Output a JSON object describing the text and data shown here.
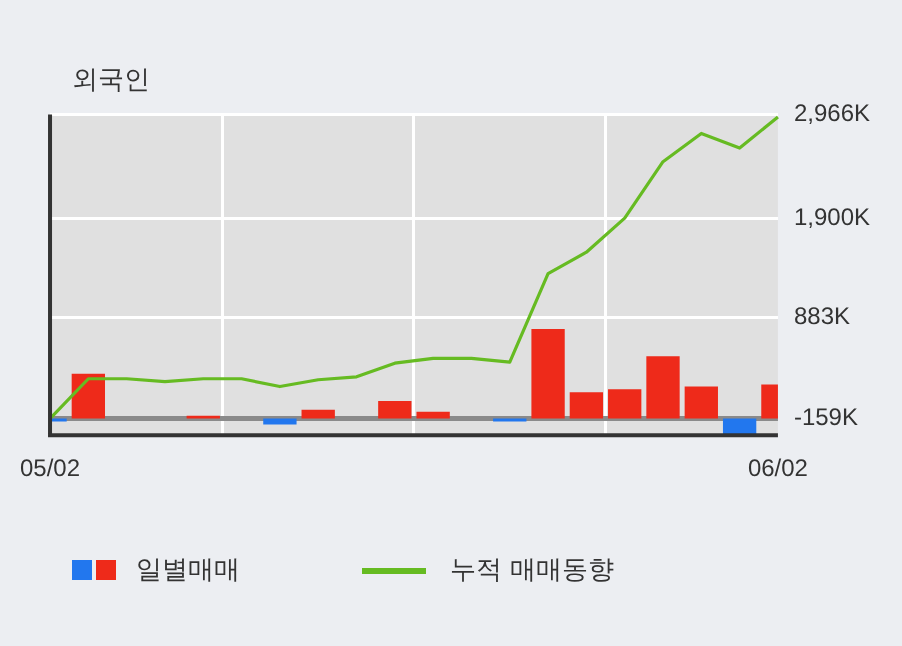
{
  "chart_data": {
    "type": "bar",
    "title": "외국인",
    "categories": [
      "05/02",
      null,
      null,
      null,
      null,
      null,
      null,
      null,
      null,
      null,
      null,
      null,
      null,
      null,
      null,
      null,
      null,
      null,
      null,
      "06/02"
    ],
    "series": [
      {
        "name": "일별매매",
        "base": [
          -159,
          -159,
          null,
          null,
          -159,
          null,
          -159,
          -159,
          null,
          -159,
          -159,
          null,
          -159,
          -159,
          -159,
          -159,
          -159,
          -159,
          -159,
          -159
        ],
        "values": [
          -30,
          460,
          null,
          null,
          30,
          null,
          -60,
          90,
          null,
          180,
          70,
          null,
          -30,
          920,
          270,
          300,
          640,
          330,
          -160,
          350
        ],
        "colors": [
          "#2277ee",
          "#ee2a1a",
          "#ee2a1a",
          "#ee2a1a",
          "#ee2a1a",
          "#ee2a1a",
          "#2277ee",
          "#ee2a1a",
          "#ee2a1a",
          "#ee2a1a",
          "#ee2a1a",
          "#ee2a1a",
          "#2277ee",
          "#ee2a1a",
          "#ee2a1a",
          "#ee2a1a",
          "#ee2a1a",
          "#ee2a1a",
          "#2277ee",
          "#ee2a1a"
        ]
      },
      {
        "name": "누적 매매동향",
        "type": "line",
        "color": "#66bb22",
        "values": [
          -160,
          250,
          250,
          220,
          250,
          250,
          170,
          240,
          270,
          410,
          460,
          460,
          420,
          1330,
          1550,
          1900,
          2480,
          2770,
          2620,
          2940
        ]
      }
    ],
    "ylim": [
      -330,
      2966
    ],
    "yticks": [
      {
        "value": -159,
        "label": "-159K"
      },
      {
        "value": 883,
        "label": "883K"
      },
      {
        "value": 1900,
        "label": "1,900K"
      },
      {
        "value": 2966,
        "label": "2,966K"
      }
    ],
    "ref_lines": [
      {
        "axis": "y",
        "value": -159,
        "color": "#8a8a8a"
      }
    ],
    "grid": true,
    "legend": "bottom",
    "marker": "none",
    "line_style": "solid"
  }
}
